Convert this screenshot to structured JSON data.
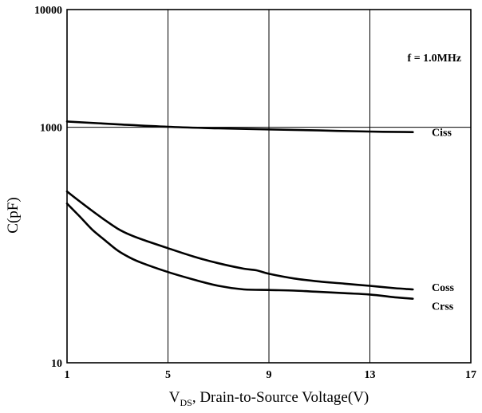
{
  "chart_data": {
    "type": "line",
    "title": "",
    "xlabel": {
      "main": "V",
      "sub": "DS",
      "rest": ", Drain-to-Source Voltage(V)"
    },
    "ylabel": "C(pF)",
    "xlim": [
      1,
      17
    ],
    "ylim": [
      10,
      10000
    ],
    "yscale": "log",
    "x_ticks": [
      1,
      5,
      9,
      13,
      17
    ],
    "y_ticks": [
      10,
      1000,
      10000
    ],
    "grid": true,
    "annotation": "f = 1.0MHz",
    "series": [
      {
        "name": "Ciss",
        "x": [
          1,
          3,
          5,
          7,
          9,
          11,
          13,
          14.7
        ],
        "y": [
          1120,
          1060,
          1010,
          980,
          960,
          940,
          920,
          910
        ]
      },
      {
        "name": "Coss",
        "x": [
          1,
          1.5,
          2,
          2.5,
          3,
          3.5,
          4,
          5,
          6,
          7,
          8,
          8.5,
          9,
          10,
          11,
          12,
          13,
          14,
          14.7
        ],
        "y": [
          285,
          235,
          195,
          163,
          138,
          122,
          111,
          94,
          80,
          70,
          63,
          61,
          57,
          52,
          49,
          47,
          45,
          43,
          42
        ]
      },
      {
        "name": "Crss",
        "x": [
          1,
          1.5,
          2,
          2.5,
          3,
          3.5,
          4,
          5,
          6,
          7,
          8,
          9,
          10,
          11,
          12,
          13,
          14,
          14.7
        ],
        "y": [
          225,
          175,
          135,
          110,
          90,
          78,
          70,
          59,
          51,
          45,
          42,
          41.5,
          41,
          40,
          39,
          38,
          36,
          35
        ]
      }
    ]
  }
}
